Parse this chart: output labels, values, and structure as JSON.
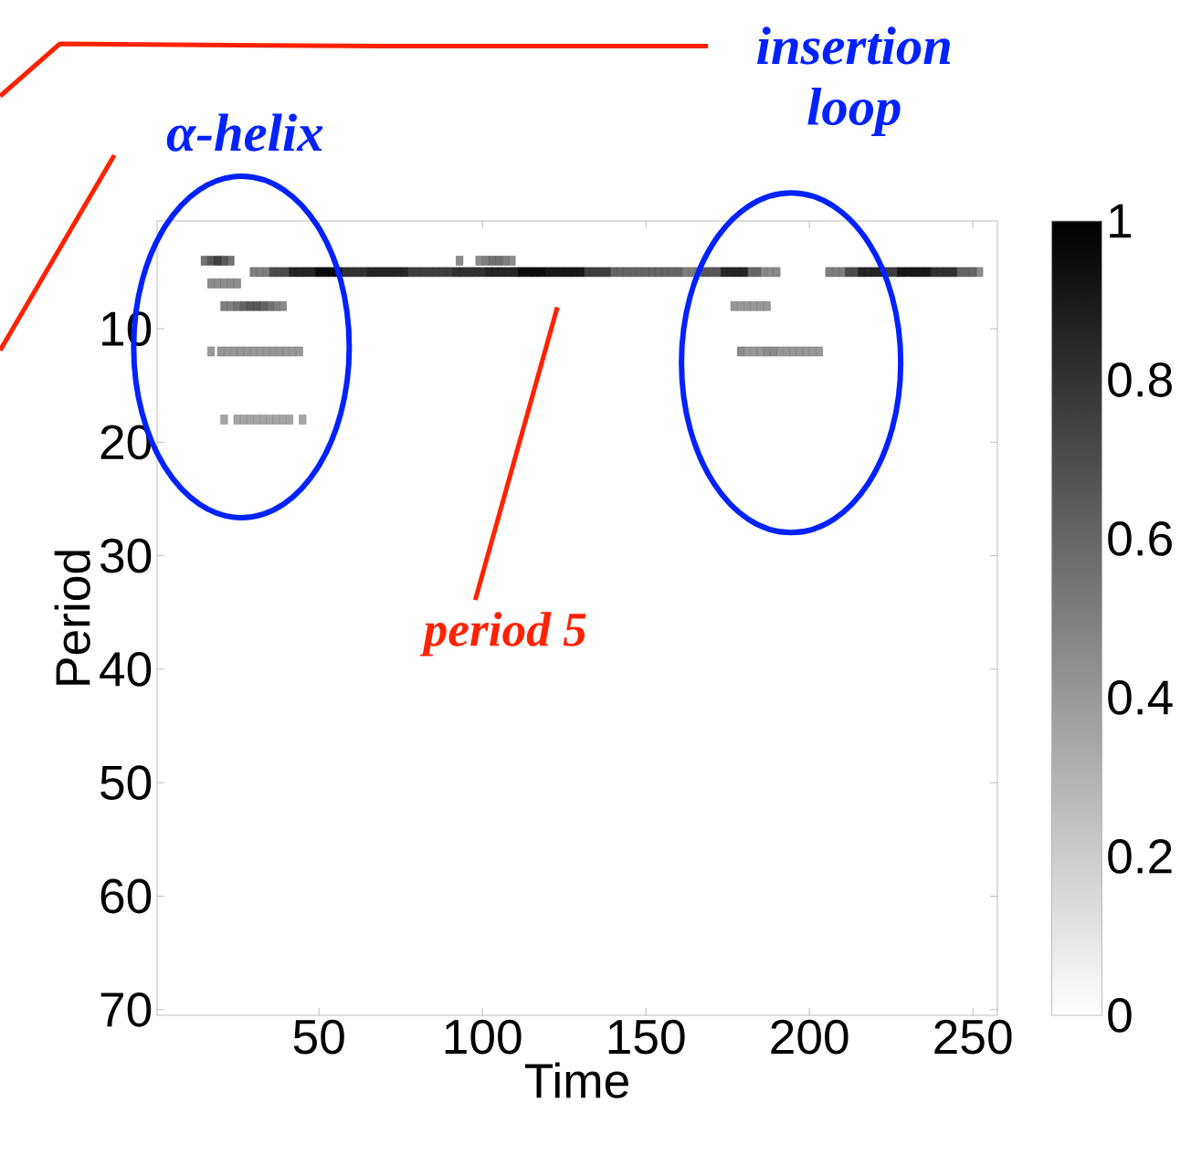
{
  "chart_data": {
    "type": "scatter",
    "xlabel": "Time",
    "ylabel": "Period",
    "marker": "square",
    "xlim": [
      0.5,
      257.5
    ],
    "ylim": [
      70.5,
      0.5
    ],
    "xticks": [
      50,
      100,
      150,
      200,
      250
    ],
    "yticks": [
      10,
      20,
      30,
      40,
      50,
      60,
      70
    ],
    "clim": [
      0,
      1
    ],
    "cticks": [
      0,
      0.2,
      0.4,
      0.6,
      0.8,
      1
    ],
    "annotations": [
      "α-helix",
      "insertion loop",
      "period 5"
    ],
    "series": [
      {
        "x": [
          21,
          25,
          27,
          29,
          31,
          33,
          35,
          37,
          39,
          41,
          45
        ],
        "values": [
          18,
          18,
          18,
          18,
          18,
          18,
          18,
          18,
          18,
          18,
          18
        ],
        "cvalues": [
          0.35,
          0.35,
          0.35,
          0.35,
          0.35,
          0.35,
          0.35,
          0.35,
          0.35,
          0.35,
          0.35
        ]
      },
      {
        "x": [
          177,
          179,
          181,
          183,
          185,
          187,
          17,
          20,
          22,
          24,
          26,
          28,
          30,
          32,
          34,
          36,
          38,
          40,
          42,
          44,
          181,
          183,
          185,
          191,
          193,
          195,
          197,
          199,
          201,
          203
        ],
        "values": [
          8,
          8,
          8,
          8,
          8,
          8,
          12,
          12,
          12,
          12,
          12,
          12,
          12,
          12,
          12,
          12,
          12,
          12,
          12,
          12,
          12,
          12,
          12,
          12,
          12,
          12,
          12,
          12,
          12,
          12
        ],
        "cvalues": [
          0.4,
          0.4,
          0.4,
          0.4,
          0.4,
          0.4,
          0.4,
          0.4,
          0.4,
          0.4,
          0.4,
          0.4,
          0.4,
          0.4,
          0.4,
          0.4,
          0.4,
          0.4,
          0.4,
          0.4,
          0.4,
          0.4,
          0.4,
          0.4,
          0.4,
          0.4,
          0.4,
          0.4,
          0.4,
          0.4
        ]
      },
      {
        "x": [
          93,
          99,
          109,
          186,
          188,
          190,
          252,
          17,
          19,
          21,
          23,
          25,
          39,
          179,
          187,
          189
        ],
        "values": [
          4,
          4,
          4,
          5,
          5,
          5,
          5,
          6,
          6,
          6,
          6,
          6,
          8,
          12,
          12,
          12
        ],
        "cvalues": [
          0.45,
          0.45,
          0.45,
          0.45,
          0.45,
          0.45,
          0.45,
          0.45,
          0.45,
          0.45,
          0.45,
          0.45,
          0.45,
          0.45,
          0.45,
          0.45
        ]
      },
      {
        "x": [
          101,
          107,
          30,
          32,
          34,
          162,
          164,
          166,
          206,
          208,
          210,
          21,
          23,
          37
        ],
        "values": [
          4,
          4,
          5,
          5,
          5,
          5,
          5,
          5,
          5,
          5,
          5,
          8,
          8,
          8
        ],
        "cvalues": [
          0.5,
          0.5,
          0.5,
          0.5,
          0.5,
          0.5,
          0.5,
          0.5,
          0.5,
          0.5,
          0.5,
          0.5,
          0.5,
          0.5
        ]
      },
      {
        "x": [
          15,
          23,
          103,
          105,
          25,
          35
        ],
        "values": [
          4,
          4,
          4,
          4,
          8,
          8
        ],
        "cvalues": [
          0.55,
          0.55,
          0.55,
          0.55,
          0.55,
          0.55
        ]
      },
      {
        "x": [
          140,
          142,
          144,
          146,
          148,
          150,
          152,
          154,
          156,
          158,
          160,
          182,
          184,
          246,
          248,
          250,
          27,
          33
        ],
        "values": [
          5,
          5,
          5,
          5,
          5,
          5,
          5,
          5,
          5,
          5,
          5,
          5,
          5,
          5,
          5,
          5,
          8,
          8
        ],
        "cvalues": [
          0.6,
          0.6,
          0.6,
          0.6,
          0.6,
          0.6,
          0.6,
          0.6,
          0.6,
          0.6,
          0.6,
          0.6,
          0.6,
          0.6,
          0.6,
          0.6,
          0.6,
          0.6
        ]
      },
      {
        "x": [
          17,
          21,
          168,
          170,
          172,
          29,
          31
        ],
        "values": [
          4,
          4,
          5,
          5,
          5,
          8,
          8
        ],
        "cvalues": [
          0.65,
          0.65,
          0.65,
          0.65,
          0.65,
          0.65,
          0.65
        ]
      },
      {
        "x": [
          36,
          38,
          40,
          212,
          214
        ],
        "values": [
          5,
          5,
          5,
          5,
          5
        ],
        "cvalues": [
          0.7,
          0.7,
          0.7,
          0.7,
          0.7
        ]
      },
      {
        "x": [
          19,
          78,
          80,
          82,
          84,
          86,
          88,
          90,
          132,
          134,
          136,
          138,
          224,
          226
        ],
        "values": [
          4,
          5,
          5,
          5,
          5,
          5,
          5,
          5,
          5,
          5,
          5,
          5,
          5,
          5
        ],
        "cvalues": [
          0.75,
          0.75,
          0.75,
          0.75,
          0.75,
          0.75,
          0.75,
          0.75,
          0.75,
          0.75,
          0.75,
          0.75,
          0.75,
          0.75
        ]
      },
      {
        "x": [
          58,
          60,
          62,
          64,
          92,
          94,
          96,
          98,
          100,
          238,
          240,
          242,
          244
        ],
        "values": [
          5,
          5,
          5,
          5,
          5,
          5,
          5,
          5,
          5,
          5,
          5,
          5,
          5
        ],
        "cvalues": [
          0.8,
          0.8,
          0.8,
          0.8,
          0.8,
          0.8,
          0.8,
          0.8,
          0.8,
          0.8,
          0.8,
          0.8,
          0.8
        ]
      },
      {
        "x": [
          42,
          44,
          46,
          48,
          66,
          68,
          70,
          72,
          74,
          76,
          102,
          104,
          106,
          108,
          110,
          174,
          176,
          178,
          180,
          216,
          218,
          220,
          222
        ],
        "values": [
          5,
          5,
          5,
          5,
          5,
          5,
          5,
          5,
          5,
          5,
          5,
          5,
          5,
          5,
          5,
          5,
          5,
          5,
          5,
          5,
          5,
          5,
          5
        ],
        "cvalues": [
          0.85,
          0.85,
          0.85,
          0.85,
          0.85,
          0.85,
          0.85,
          0.85,
          0.85,
          0.85,
          0.85,
          0.85,
          0.85,
          0.85,
          0.85,
          0.85,
          0.85,
          0.85,
          0.85,
          0.85,
          0.85,
          0.85,
          0.85
        ]
      },
      {
        "x": [
          120,
          122,
          124,
          126,
          128,
          130,
          228,
          230,
          232,
          234,
          236
        ],
        "values": [
          5,
          5,
          5,
          5,
          5,
          5,
          5,
          5,
          5,
          5,
          5
        ],
        "cvalues": [
          0.9,
          0.9,
          0.9,
          0.9,
          0.9,
          0.9,
          0.9,
          0.9,
          0.9,
          0.9,
          0.9
        ]
      },
      {
        "x": [
          50,
          52,
          54,
          56,
          112,
          114,
          116,
          118
        ],
        "values": [
          5,
          5,
          5,
          5,
          5,
          5,
          5,
          5
        ],
        "cvalues": [
          0.95,
          0.95,
          0.95,
          0.95,
          0.95,
          0.95,
          0.95,
          0.95
        ]
      }
    ]
  }
}
